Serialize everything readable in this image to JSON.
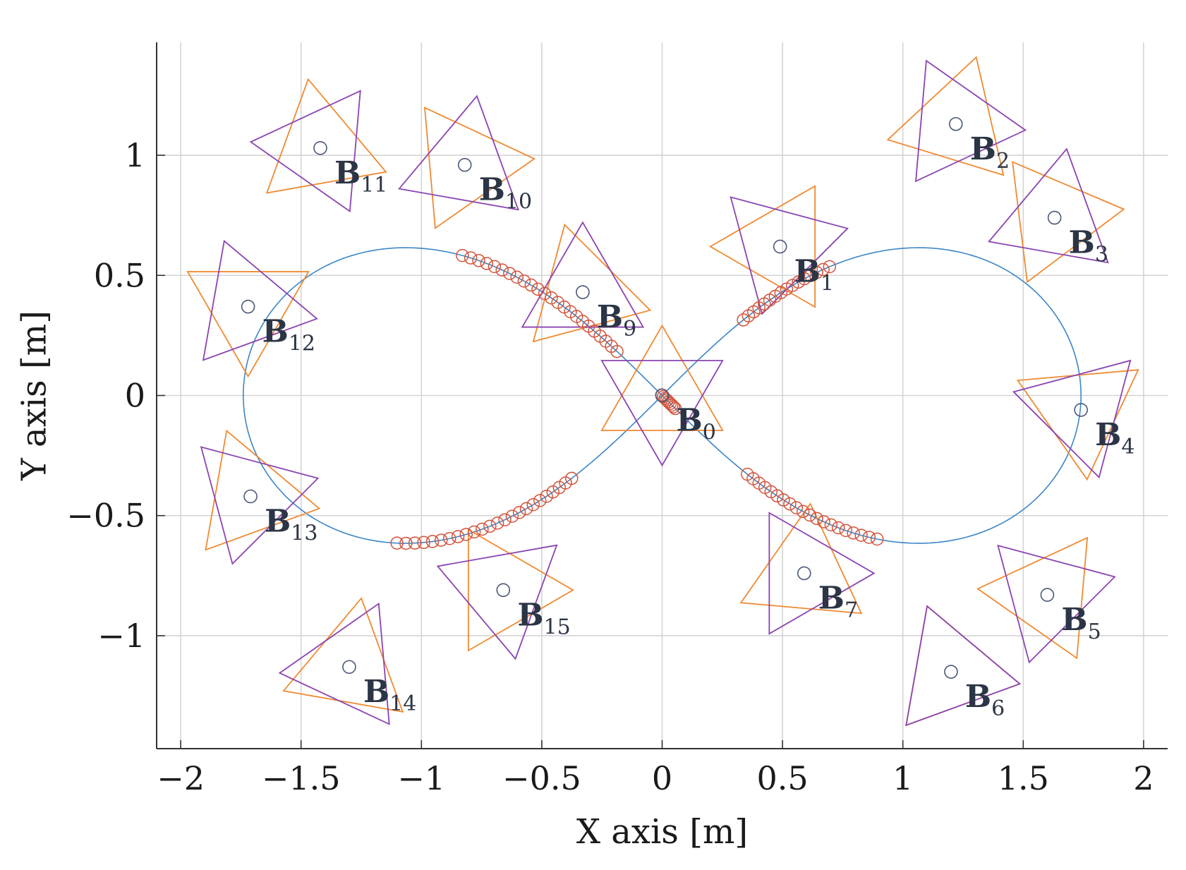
{
  "chart_data": {
    "type": "scatter",
    "xlabel": "X axis [m]",
    "ylabel": "Y axis [m]",
    "xlim": [
      -2.1,
      2.1
    ],
    "ylim": [
      -1.47,
      1.47
    ],
    "xticks": [
      -2,
      -1.5,
      -1,
      -0.5,
      0,
      0.5,
      1,
      1.5,
      2
    ],
    "yticks": [
      -1,
      -0.5,
      0,
      0.5,
      1
    ],
    "xtick_labels": [
      "−2",
      "−1.5",
      "−1",
      "−0.5",
      "0",
      "0.5",
      "1",
      "1.5",
      "2"
    ],
    "ytick_labels": [
      "−1",
      "−0.5",
      "0",
      "0.5",
      "1"
    ],
    "grid": true,
    "colors": {
      "trajectory": "#3b86c6",
      "dense_markers": "#d2533b",
      "base_markers": "#4a5878",
      "triangle_orange": "#ef8a32",
      "triangle_purple": "#8b44b1",
      "base_label": "#2c3545",
      "axis": "#333333"
    },
    "trajectory": {
      "kind": "lemniscate-of-Bernoulli",
      "a": 1.74
    },
    "bases": [
      {
        "name": "B",
        "sub": "0",
        "x": 0.0,
        "y": 0.0,
        "orange_rot": 0,
        "purple_rot": 180
      },
      {
        "name": "B",
        "sub": "1",
        "x": 0.49,
        "y": 0.62,
        "orange_rot": -150,
        "purple_rot": 165
      },
      {
        "name": "B",
        "sub": "2",
        "x": 1.22,
        "y": 1.13,
        "orange_rot": -137,
        "purple_rot": 145
      },
      {
        "name": "B",
        "sub": "3",
        "x": 1.63,
        "y": 0.74,
        "orange_rot": -83,
        "purple_rot": 110
      },
      {
        "name": "B",
        "sub": "4",
        "x": 1.74,
        "y": -0.06,
        "orange_rot": -55,
        "purple_rot": 75
      },
      {
        "name": "B",
        "sub": "5",
        "x": 1.6,
        "y": -0.83,
        "orange_rot": -35,
        "purple_rot": 45
      },
      {
        "name": "B",
        "sub": "6",
        "x": 1.2,
        "y": -1.15,
        "orange_rot": 20,
        "purple_rot": 20
      },
      {
        "name": "B",
        "sub": "7",
        "x": 0.59,
        "y": -0.74,
        "orange_rot": -5,
        "purple_rot": 30
      },
      {
        "name": "B",
        "sub": "9",
        "x": -0.33,
        "y": 0.43,
        "orange_rot": 15,
        "purple_rot": -120
      },
      {
        "name": "B",
        "sub": "10",
        "x": -0.82,
        "y": 0.96,
        "orange_rot": 35,
        "purple_rot": -130
      },
      {
        "name": "B",
        "sub": "11",
        "x": -1.42,
        "y": 1.03,
        "orange_rot": 10,
        "purple_rot": -155
      },
      {
        "name": "B",
        "sub": "12",
        "x": -1.72,
        "y": 0.37,
        "orange_rot": 180,
        "purple_rot": -100
      },
      {
        "name": "B",
        "sub": "13",
        "x": -1.71,
        "y": -0.42,
        "orange_rot": 140,
        "purple_rot": -75
      },
      {
        "name": "B",
        "sub": "14",
        "x": -1.3,
        "y": -1.13,
        "orange_rot": -10,
        "purple_rot": -25
      },
      {
        "name": "B",
        "sub": "15",
        "x": -0.66,
        "y": -0.81,
        "orange_rot": 30,
        "purple_rot": -50
      }
    ],
    "dense_marker_clusters": [
      {
        "t_start": 1.98,
        "t_end": 2.55,
        "count": 24
      },
      {
        "t_start": 0.88,
        "t_end": 1.2,
        "count": 16
      },
      {
        "t_start": 3.92,
        "t_end": 4.5,
        "count": 24
      },
      {
        "t_start": 5.1,
        "t_end": 5.55,
        "count": 20
      },
      {
        "t_start": 4.71,
        "t_end": 4.775,
        "count": 9
      }
    ]
  }
}
